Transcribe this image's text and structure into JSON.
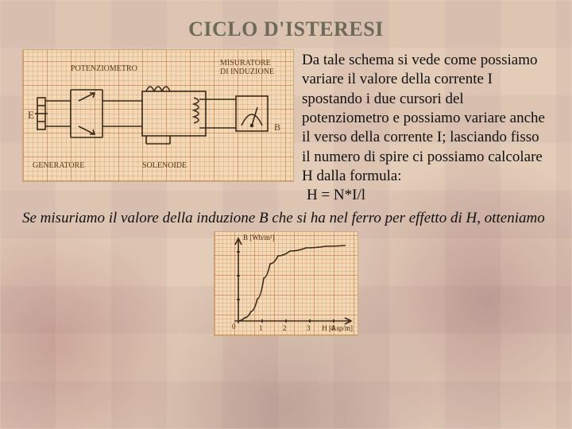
{
  "title": "CICLO D'ISTERESI",
  "circuit": {
    "labels": {
      "potenziometro": "POTENZIOMETRO",
      "misuratore": "MISURATORE\nDI INDUZIONE",
      "generatore": "GENERATORE",
      "solenoide": "SOLENOIDE",
      "E": "E",
      "B": "B"
    },
    "stroke": "#3a2a18",
    "grid_minor": "#e0b080",
    "grid_major": "#c88850",
    "bg": "#f2d9b8"
  },
  "paragraph": {
    "intro": "Da tale schema si vede come possiamo variare il valore della corrente I spostando i due cursori del potenziometro e possiamo variare anche il verso della corrente I; lasciando fisso il numero di spire ci possiamo calcolare H dalla formula:",
    "formula": "H = N*I/l"
  },
  "paragraph2": "Se misuriamo il valore della induzione B che si ha nel ferro per effetto di H, otteniamo",
  "graph": {
    "y_axis_label": "B [Wb/m²]",
    "x_axis_label": "H [Asp/m]",
    "origin_label": "0",
    "x_ticks": [
      "1",
      "2",
      "3",
      "4"
    ],
    "curve_points": [
      [
        30,
        112
      ],
      [
        38,
        108
      ],
      [
        46,
        100
      ],
      [
        54,
        84
      ],
      [
        62,
        58
      ],
      [
        70,
        40
      ],
      [
        80,
        30
      ],
      [
        95,
        24
      ],
      [
        115,
        20
      ],
      [
        140,
        18
      ],
      [
        165,
        17
      ]
    ],
    "stroke": "#3a2a18"
  },
  "colors": {
    "title": "#6b6b58",
    "text": "#111111",
    "slide_bg": "#f0e2cf"
  }
}
